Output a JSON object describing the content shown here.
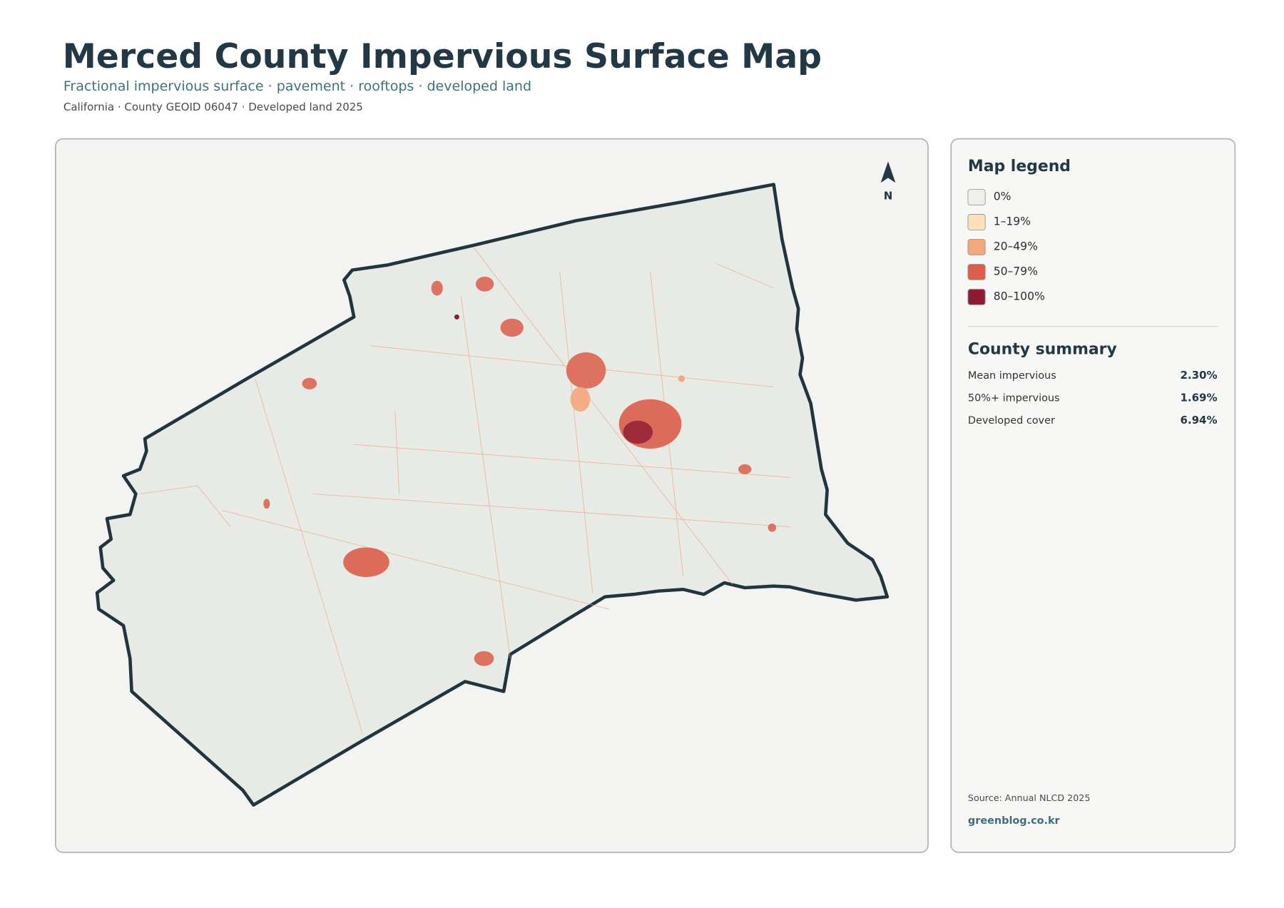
{
  "header": {
    "title": "Merced County Impervious Surface Map",
    "subtitle": "Fractional impervious surface · pavement · rooftops · developed land",
    "meta": "California · County GEOID 06047 · Developed land 2025"
  },
  "map": {
    "north_label": "N"
  },
  "legend": {
    "title": "Map legend",
    "items": [
      {
        "label": "0%",
        "color": "#efefeb"
      },
      {
        "label": "1–19%",
        "color": "#fde0b8"
      },
      {
        "label": "20–49%",
        "color": "#f4a67c"
      },
      {
        "label": "50–79%",
        "color": "#dc5d4a"
      },
      {
        "label": "80–100%",
        "color": "#8e1b32"
      }
    ]
  },
  "summary": {
    "title": "County summary",
    "rows": [
      {
        "label": "Mean impervious",
        "value": "2.30%"
      },
      {
        "label": "50%+ impervious",
        "value": "1.69%"
      },
      {
        "label": "Developed cover",
        "value": "6.94%"
      }
    ]
  },
  "footer": {
    "source": "Source: Annual NLCD 2025",
    "site": "greenblog.co.kr"
  }
}
